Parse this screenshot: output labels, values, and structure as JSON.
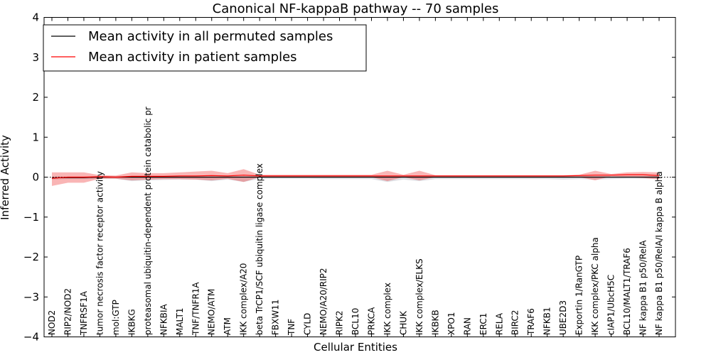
{
  "chart_data": {
    "type": "line",
    "title": "Canonical NF-kappaB pathway -- 70 samples",
    "xlabel": "Cellular Entities",
    "ylabel": "Inferred Activity",
    "ylim": [
      -4,
      4
    ],
    "yticks": [
      -4,
      -3,
      -2,
      -1,
      0,
      1,
      2,
      3,
      4
    ],
    "ytick_labels": [
      "−4",
      "−3",
      "−2",
      "−1",
      "0",
      "1",
      "2",
      "3",
      "4"
    ],
    "legend_position": "top-left",
    "categories": [
      "NOD2",
      "RIP2/NOD2",
      "TNFRSF1A",
      "tumor necrosis factor receptor activity",
      "mol:GTP",
      "IKBKG",
      "proteasomal ubiquitin-dependent protein catabolic pr",
      "NFKBIA",
      "MALT1",
      "TNF/TNFR1A",
      "NEMO/ATM",
      "ATM",
      "IKK complex/A20",
      "beta TrCP1/SCF ubiquitin ligase complex",
      "FBXW11",
      "TNF",
      "CYLD",
      "NEMO/A20/RIP2",
      "RIPK2",
      "BCL10",
      "PRKCA",
      "IKK complex",
      "CHUK",
      "IKK complex/ELKS",
      "IKBKB",
      "XPO1",
      "RAN",
      "ERC1",
      "RELA",
      "BIRC2",
      "TRAF6",
      "NFKB1",
      "UBE2D3",
      "Exportin 1/RanGTP",
      "IKK complex/PKC alpha",
      "cIAP1/UbcH5C",
      "BCL10/MALT1/TRAF6",
      "NF kappa B1 p50/RelA",
      "NF kappa B1 p50/RelA/I kappa B alpha"
    ],
    "series": [
      {
        "name": "Mean activity in all permuted samples",
        "color": "#000000",
        "values": [
          -0.02,
          -0.01,
          -0.01,
          0.0,
          0.0,
          0.0,
          0.0,
          0.0,
          0.0,
          0.0,
          0.0,
          0.0,
          0.0,
          0.0,
          0.0,
          0.0,
          0.0,
          0.0,
          0.0,
          0.0,
          0.0,
          0.0,
          0.0,
          0.0,
          0.0,
          0.0,
          0.0,
          0.0,
          0.0,
          0.0,
          0.0,
          0.0,
          0.0,
          0.0,
          0.0,
          0.0,
          0.0,
          0.0,
          0.0
        ],
        "band_upper": [
          0.02,
          0.02,
          0.02,
          0.02,
          0.02,
          0.02,
          0.02,
          0.02,
          0.02,
          0.02,
          0.02,
          0.02,
          0.02,
          0.02,
          0.02,
          0.02,
          0.02,
          0.02,
          0.02,
          0.02,
          0.02,
          0.02,
          0.02,
          0.02,
          0.02,
          0.02,
          0.02,
          0.02,
          0.02,
          0.02,
          0.02,
          0.02,
          0.02,
          0.02,
          0.02,
          0.02,
          0.02,
          0.02,
          0.02
        ],
        "band_lower": [
          -0.06,
          -0.05,
          -0.05,
          -0.04,
          -0.04,
          -0.1,
          -0.08,
          -0.07,
          -0.06,
          -0.06,
          -0.1,
          -0.06,
          -0.12,
          -0.04,
          -0.04,
          -0.04,
          -0.04,
          -0.05,
          -0.05,
          -0.05,
          -0.05,
          -0.12,
          -0.06,
          -0.1,
          -0.05,
          -0.05,
          -0.05,
          -0.05,
          -0.05,
          -0.05,
          -0.05,
          -0.05,
          -0.06,
          -0.05,
          -0.06,
          -0.05,
          -0.04,
          -0.04,
          -0.04
        ]
      },
      {
        "name": "Mean activity in patient samples",
        "color": "#ff0000",
        "values": [
          -0.03,
          0.0,
          0.0,
          0.01,
          0.0,
          0.02,
          0.02,
          0.02,
          0.03,
          0.03,
          0.04,
          0.03,
          0.05,
          0.03,
          0.03,
          0.03,
          0.03,
          0.03,
          0.03,
          0.03,
          0.03,
          0.03,
          0.03,
          0.03,
          0.03,
          0.03,
          0.03,
          0.03,
          0.03,
          0.03,
          0.03,
          0.03,
          0.03,
          0.04,
          0.05,
          0.05,
          0.06,
          0.06,
          0.04
        ],
        "band_upper": [
          0.12,
          0.12,
          0.12,
          0.05,
          0.04,
          0.12,
          0.1,
          0.1,
          0.12,
          0.14,
          0.16,
          0.1,
          0.2,
          0.06,
          0.06,
          0.06,
          0.06,
          0.06,
          0.06,
          0.06,
          0.06,
          0.16,
          0.06,
          0.16,
          0.05,
          0.05,
          0.05,
          0.05,
          0.05,
          0.05,
          0.05,
          0.05,
          0.05,
          0.06,
          0.16,
          0.08,
          0.12,
          0.13,
          0.12
        ],
        "band_lower": [
          -0.22,
          -0.14,
          -0.14,
          -0.04,
          -0.04,
          -0.08,
          -0.06,
          -0.05,
          -0.05,
          -0.06,
          -0.08,
          -0.04,
          -0.12,
          0.0,
          0.0,
          0.0,
          0.0,
          0.0,
          0.0,
          0.0,
          0.0,
          -0.1,
          0.0,
          -0.08,
          0.0,
          0.0,
          0.0,
          0.0,
          0.0,
          0.0,
          0.0,
          0.0,
          0.0,
          0.0,
          -0.08,
          0.02,
          0.0,
          -0.02,
          -0.06
        ]
      }
    ],
    "baseline": {
      "value": 0,
      "style": "dotted"
    }
  }
}
